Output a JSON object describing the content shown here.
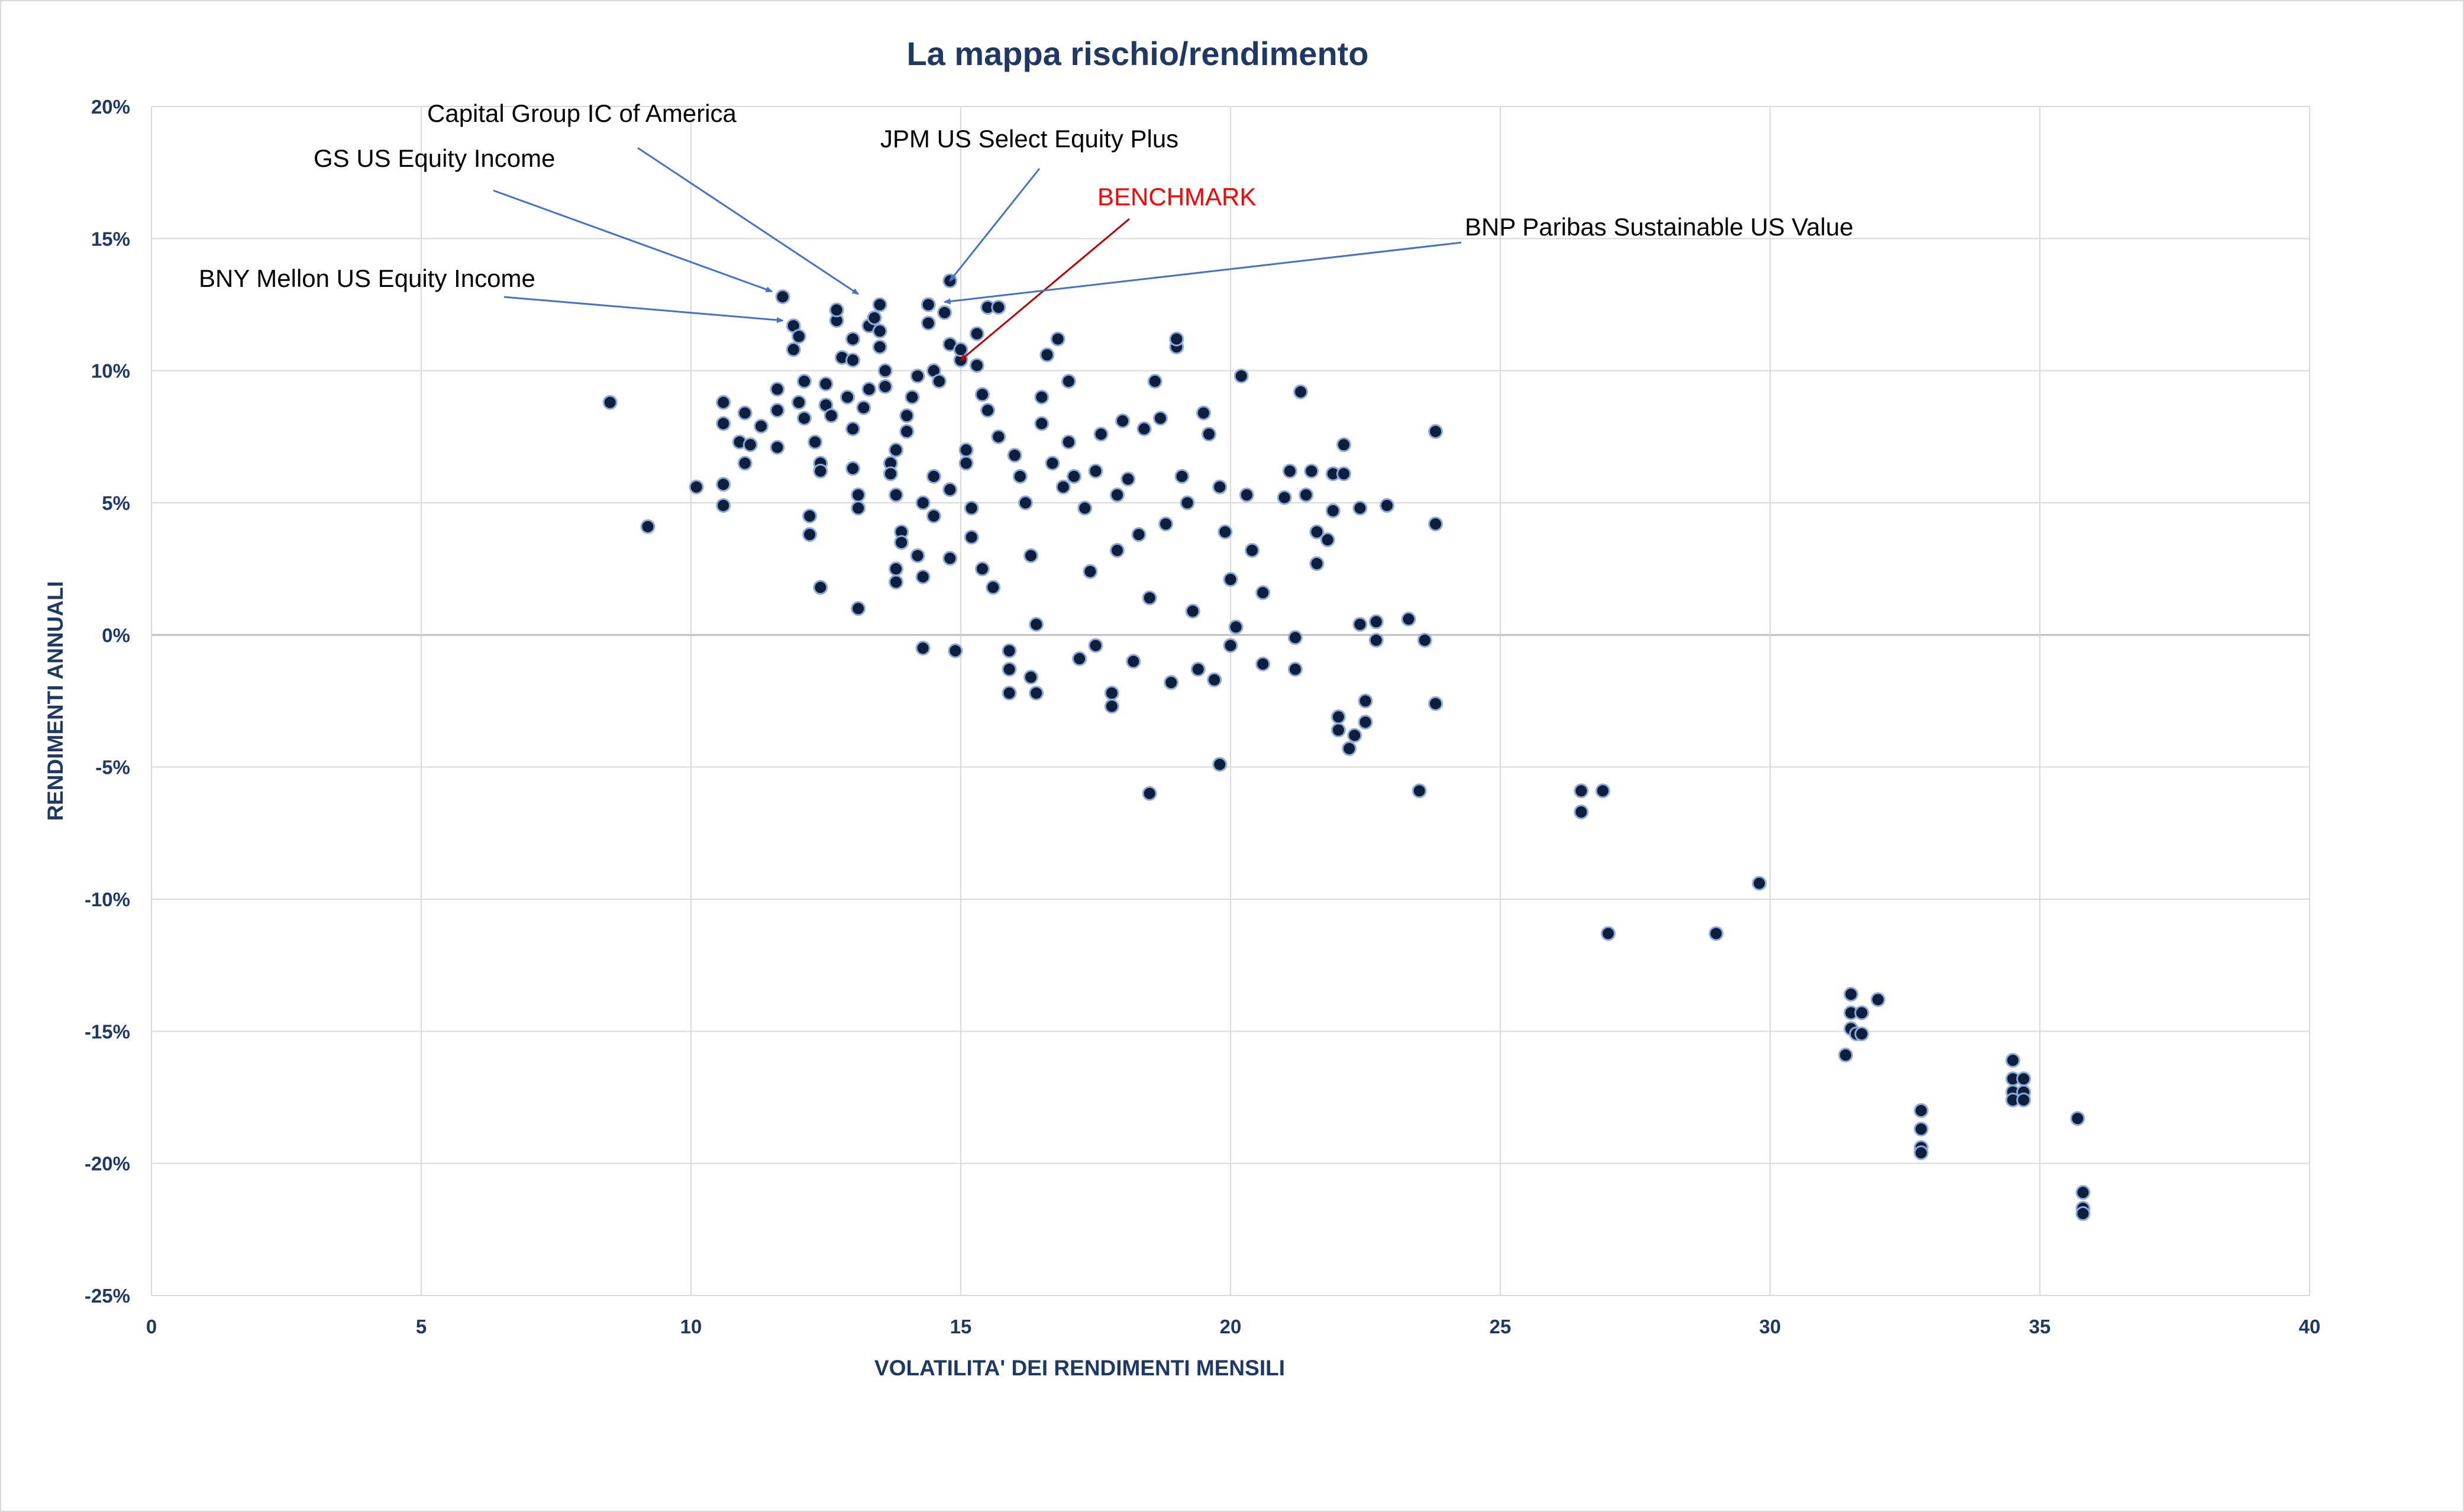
{
  "chart_data": {
    "type": "scatter",
    "title": "La mappa rischio/rendimento",
    "xlabel": "VOLATILITA' DEI RENDIMENTI MENSILI",
    "ylabel": "RENDIMENTI ANNUALI",
    "xlim": [
      0,
      40
    ],
    "ylim": [
      -25,
      20
    ],
    "x_ticks": [
      "0",
      "5",
      "10",
      "15",
      "20",
      "25",
      "30",
      "35",
      "40"
    ],
    "y_ticks": [
      "20%",
      "15%",
      "10%",
      "5%",
      "0%",
      "-5%",
      "-10%",
      "-15%",
      "-20%",
      "-25%"
    ],
    "grid": true,
    "legend": "none",
    "colors": {
      "marker": "#0d1f3c",
      "marker_edge": "#8faadc",
      "text": "#1f3864",
      "benchmark": "#ff0000",
      "arrow": "#4472c4"
    },
    "annotations": [
      {
        "label": "Capital Group IC of America",
        "x": 13.1,
        "y": 12.9,
        "color": "#000000"
      },
      {
        "label": "GS US Equity Income",
        "x": 11.5,
        "y": 13.0,
        "color": "#000000"
      },
      {
        "label": "JPM US Select Equity Plus",
        "x": 14.8,
        "y": 13.4,
        "color": "#000000"
      },
      {
        "label": "BENCHMARK",
        "x": 15.0,
        "y": 10.4,
        "color": "#ff0000"
      },
      {
        "label": "BNP Paribas Sustainable US Value",
        "x": 14.7,
        "y": 12.6,
        "color": "#000000"
      },
      {
        "label": "BNY Mellon US Equity Income",
        "x": 11.7,
        "y": 11.9,
        "color": "#000000"
      }
    ],
    "series": [
      {
        "points": [
          [
            8.5,
            8.8
          ],
          [
            9.2,
            4.1
          ],
          [
            10.1,
            5.6
          ],
          [
            10.6,
            4.9
          ],
          [
            10.6,
            5.7
          ],
          [
            10.6,
            8.0
          ],
          [
            10.6,
            8.8
          ],
          [
            10.9,
            7.3
          ],
          [
            11.0,
            8.4
          ],
          [
            11.0,
            6.5
          ],
          [
            11.1,
            7.2
          ],
          [
            11.3,
            7.9
          ],
          [
            11.6,
            7.1
          ],
          [
            11.6,
            8.5
          ],
          [
            11.6,
            9.3
          ],
          [
            11.7,
            12.8
          ],
          [
            11.9,
            11.7
          ],
          [
            11.9,
            10.8
          ],
          [
            12.0,
            11.3
          ],
          [
            12.0,
            8.8
          ],
          [
            12.1,
            9.6
          ],
          [
            12.1,
            8.2
          ],
          [
            12.2,
            4.5
          ],
          [
            12.2,
            3.8
          ],
          [
            12.3,
            7.3
          ],
          [
            12.4,
            6.5
          ],
          [
            12.4,
            6.2
          ],
          [
            12.4,
            1.8
          ],
          [
            12.5,
            8.7
          ],
          [
            12.5,
            9.5
          ],
          [
            12.6,
            8.3
          ],
          [
            12.7,
            11.9
          ],
          [
            12.7,
            12.3
          ],
          [
            12.8,
            10.5
          ],
          [
            12.9,
            9.0
          ],
          [
            13.0,
            7.8
          ],
          [
            13.0,
            10.4
          ],
          [
            13.0,
            11.2
          ],
          [
            13.0,
            6.3
          ],
          [
            13.1,
            5.3
          ],
          [
            13.1,
            4.8
          ],
          [
            13.1,
            1.0
          ],
          [
            13.2,
            8.6
          ],
          [
            13.3,
            9.3
          ],
          [
            13.3,
            11.7
          ],
          [
            13.4,
            12.0
          ],
          [
            13.5,
            12.5
          ],
          [
            13.5,
            10.9
          ],
          [
            13.5,
            11.5
          ],
          [
            13.6,
            10.0
          ],
          [
            13.6,
            9.4
          ],
          [
            13.7,
            6.5
          ],
          [
            13.7,
            6.1
          ],
          [
            13.8,
            7.0
          ],
          [
            13.8,
            5.3
          ],
          [
            13.8,
            2.5
          ],
          [
            13.8,
            2.0
          ],
          [
            13.9,
            3.9
          ],
          [
            13.9,
            3.5
          ],
          [
            14.0,
            7.7
          ],
          [
            14.0,
            8.3
          ],
          [
            14.1,
            9.0
          ],
          [
            14.2,
            9.8
          ],
          [
            14.2,
            3.0
          ],
          [
            14.3,
            5.0
          ],
          [
            14.3,
            -0.5
          ],
          [
            14.3,
            2.2
          ],
          [
            14.4,
            12.5
          ],
          [
            14.4,
            11.8
          ],
          [
            14.5,
            10.0
          ],
          [
            14.5,
            6.0
          ],
          [
            14.5,
            4.5
          ],
          [
            14.6,
            9.6
          ],
          [
            14.7,
            12.2
          ],
          [
            14.8,
            13.4
          ],
          [
            14.8,
            11.0
          ],
          [
            14.8,
            5.5
          ],
          [
            14.8,
            2.9
          ],
          [
            14.9,
            -0.6
          ],
          [
            15.0,
            10.4
          ],
          [
            15.0,
            10.8
          ],
          [
            15.1,
            7.0
          ],
          [
            15.1,
            6.5
          ],
          [
            15.2,
            4.8
          ],
          [
            15.2,
            3.7
          ],
          [
            15.3,
            11.4
          ],
          [
            15.3,
            10.2
          ],
          [
            15.4,
            9.1
          ],
          [
            15.4,
            2.5
          ],
          [
            15.5,
            8.5
          ],
          [
            15.5,
            12.4
          ],
          [
            15.6,
            1.8
          ],
          [
            15.7,
            12.4
          ],
          [
            15.7,
            7.5
          ],
          [
            15.9,
            -0.6
          ],
          [
            15.9,
            -1.3
          ],
          [
            15.9,
            -2.2
          ],
          [
            16.0,
            6.8
          ],
          [
            16.1,
            6.0
          ],
          [
            16.2,
            5.0
          ],
          [
            16.3,
            3.0
          ],
          [
            16.3,
            -1.6
          ],
          [
            16.4,
            -2.2
          ],
          [
            16.4,
            0.4
          ],
          [
            16.5,
            9.0
          ],
          [
            16.5,
            8.0
          ],
          [
            16.6,
            10.6
          ],
          [
            16.7,
            6.5
          ],
          [
            16.8,
            11.2
          ],
          [
            16.9,
            5.6
          ],
          [
            17.0,
            9.6
          ],
          [
            17.0,
            7.3
          ],
          [
            17.1,
            6.0
          ],
          [
            17.2,
            -0.9
          ],
          [
            17.3,
            4.8
          ],
          [
            17.4,
            2.4
          ],
          [
            17.5,
            -0.4
          ],
          [
            17.5,
            6.2
          ],
          [
            17.6,
            7.6
          ],
          [
            17.8,
            -2.2
          ],
          [
            17.8,
            -2.7
          ],
          [
            17.9,
            3.2
          ],
          [
            17.9,
            5.3
          ],
          [
            18.0,
            8.1
          ],
          [
            18.1,
            5.9
          ],
          [
            18.2,
            -1.0
          ],
          [
            18.3,
            3.8
          ],
          [
            18.4,
            7.8
          ],
          [
            18.5,
            1.4
          ],
          [
            18.5,
            -6.0
          ],
          [
            18.6,
            9.6
          ],
          [
            18.7,
            8.2
          ],
          [
            18.8,
            4.2
          ],
          [
            18.9,
            -1.8
          ],
          [
            19.0,
            10.9
          ],
          [
            19.0,
            11.2
          ],
          [
            19.1,
            6.0
          ],
          [
            19.2,
            5.0
          ],
          [
            19.3,
            0.9
          ],
          [
            19.4,
            -1.3
          ],
          [
            19.5,
            8.4
          ],
          [
            19.6,
            7.6
          ],
          [
            19.7,
            -1.7
          ],
          [
            19.8,
            -4.9
          ],
          [
            19.8,
            5.6
          ],
          [
            19.9,
            3.9
          ],
          [
            20.0,
            2.1
          ],
          [
            20.0,
            -0.4
          ],
          [
            20.1,
            0.3
          ],
          [
            20.2,
            9.8
          ],
          [
            20.3,
            5.3
          ],
          [
            20.4,
            3.2
          ],
          [
            20.6,
            1.6
          ],
          [
            20.6,
            -1.1
          ],
          [
            21.0,
            5.2
          ],
          [
            21.1,
            6.2
          ],
          [
            21.2,
            -1.3
          ],
          [
            21.2,
            -0.1
          ],
          [
            21.3,
            9.2
          ],
          [
            21.4,
            5.3
          ],
          [
            21.5,
            6.2
          ],
          [
            21.6,
            3.9
          ],
          [
            21.6,
            2.7
          ],
          [
            21.8,
            3.6
          ],
          [
            21.9,
            6.1
          ],
          [
            21.9,
            4.7
          ],
          [
            22.0,
            -3.1
          ],
          [
            22.0,
            -3.6
          ],
          [
            22.1,
            7.2
          ],
          [
            22.1,
            6.1
          ],
          [
            22.2,
            -4.3
          ],
          [
            22.3,
            -3.8
          ],
          [
            22.4,
            0.4
          ],
          [
            22.4,
            4.8
          ],
          [
            22.5,
            -2.5
          ],
          [
            22.5,
            -3.3
          ],
          [
            22.7,
            0.5
          ],
          [
            22.7,
            -0.2
          ],
          [
            22.9,
            4.9
          ],
          [
            23.3,
            0.6
          ],
          [
            23.5,
            -5.9
          ],
          [
            23.6,
            -0.2
          ],
          [
            23.8,
            7.7
          ],
          [
            23.8,
            4.2
          ],
          [
            23.8,
            -2.6
          ],
          [
            26.5,
            -5.9
          ],
          [
            26.5,
            -6.7
          ],
          [
            26.9,
            -5.9
          ],
          [
            27.0,
            -11.3
          ],
          [
            29.0,
            -11.3
          ],
          [
            29.8,
            -9.4
          ],
          [
            31.4,
            -15.9
          ],
          [
            31.5,
            -13.6
          ],
          [
            31.5,
            -14.3
          ],
          [
            31.5,
            -14.9
          ],
          [
            31.6,
            -15.1
          ],
          [
            31.7,
            -14.3
          ],
          [
            31.7,
            -15.1
          ],
          [
            32.0,
            -13.8
          ],
          [
            32.8,
            -18.0
          ],
          [
            32.8,
            -18.7
          ],
          [
            32.8,
            -19.4
          ],
          [
            32.8,
            -19.6
          ],
          [
            34.5,
            -16.1
          ],
          [
            34.5,
            -16.8
          ],
          [
            34.5,
            -17.3
          ],
          [
            34.5,
            -17.6
          ],
          [
            34.7,
            -16.8
          ],
          [
            34.7,
            -17.3
          ],
          [
            34.7,
            -17.6
          ],
          [
            35.7,
            -18.3
          ],
          [
            35.8,
            -21.1
          ],
          [
            35.8,
            -21.7
          ],
          [
            35.8,
            -21.9
          ]
        ]
      }
    ]
  }
}
